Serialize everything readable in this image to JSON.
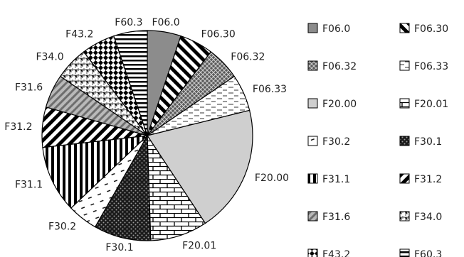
{
  "chart_data": {
    "type": "pie",
    "title": "",
    "slices": [
      {
        "label": "F06.0",
        "value": 5.0,
        "pattern": "solid-gray"
      },
      {
        "label": "F06.30",
        "value": 5.0,
        "pattern": "diag-thick"
      },
      {
        "label": "F06.32",
        "value": 5.0,
        "pattern": "crosshatch"
      },
      {
        "label": "F06.33",
        "value": 5.5,
        "pattern": "dashes"
      },
      {
        "label": "F20.00",
        "value": 19.0,
        "pattern": "light-gray"
      },
      {
        "label": "F20.01",
        "value": 8.5,
        "pattern": "bricks"
      },
      {
        "label": "F30.1",
        "value": 8.5,
        "pattern": "dense-dots"
      },
      {
        "label": "F30.2",
        "value": 4.5,
        "pattern": "sparse-dashes"
      },
      {
        "label": "F31.1",
        "value": 10.0,
        "pattern": "vertical-stripes"
      },
      {
        "label": "F31.2",
        "value": 6.0,
        "pattern": "diag-stripes"
      },
      {
        "label": "F31.6",
        "value": 5.0,
        "pattern": "gray-diagonal"
      },
      {
        "label": "F34.0",
        "value": 5.0,
        "pattern": "weave"
      },
      {
        "label": "F43.2",
        "value": 5.0,
        "pattern": "checker"
      },
      {
        "label": "F60.3",
        "value": 5.0,
        "pattern": "horizontal-stripes"
      }
    ],
    "legend": {
      "placement": "right",
      "columns": 2,
      "entries": [
        "F06.0",
        "F06.30",
        "F06.32",
        "F06.33",
        "F20.00",
        "F20.01",
        "F30.2",
        "F30.1",
        "F31.1",
        "F31.2",
        "F31.6",
        "F34.0",
        "F43.2",
        "F60.3"
      ]
    }
  }
}
